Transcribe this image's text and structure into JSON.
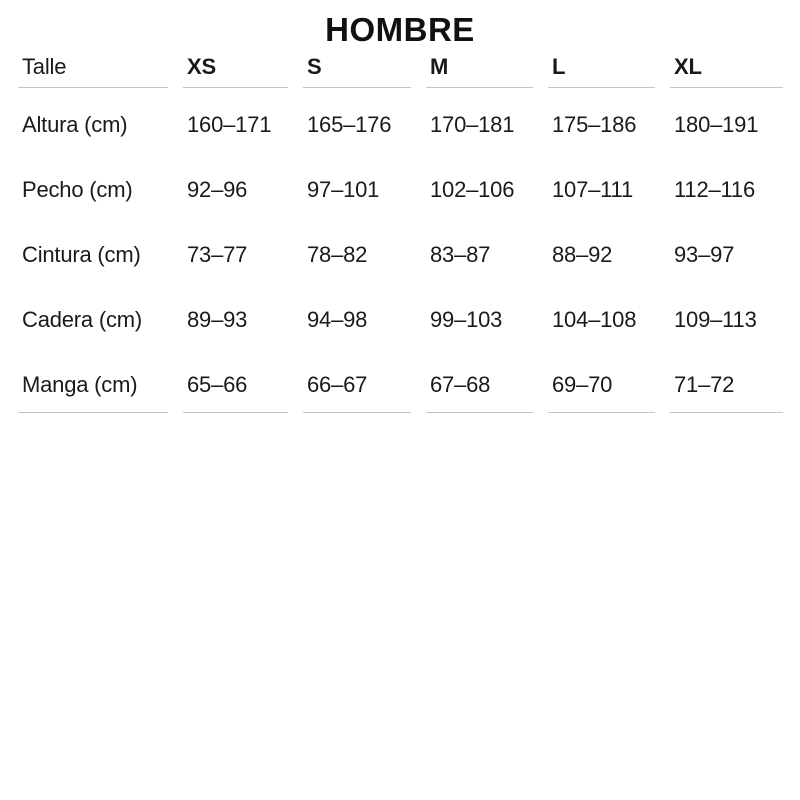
{
  "theme": {
    "background": "#ffffff",
    "text_color": "#1a1a1a",
    "title_color": "#111111",
    "rule_color": "#c5c5c5"
  },
  "chart_data": {
    "type": "table",
    "title": "HOMBRE",
    "columns": [
      "Talle",
      "XS",
      "S",
      "M",
      "L",
      "XL"
    ],
    "rows": [
      {
        "label": "Altura (cm)",
        "values": [
          "160–171",
          "165–176",
          "170–181",
          "175–186",
          "180–191"
        ]
      },
      {
        "label": "Pecho (cm)",
        "values": [
          "92–96",
          "97–101",
          "102–106",
          "107–111",
          "112–116"
        ]
      },
      {
        "label": "Cintura (cm)",
        "values": [
          "73–77",
          "78–82",
          "83–87",
          "88–92",
          "93–97"
        ]
      },
      {
        "label": "Cadera (cm)",
        "values": [
          "89–93",
          "94–98",
          "99–103",
          "104–108",
          "109–113"
        ]
      },
      {
        "label": "Manga (cm)",
        "values": [
          "65–66",
          "66–67",
          "67–68",
          "69–70",
          "71–72"
        ]
      }
    ],
    "layout": {
      "grid": "horizontal rules under header row and below last row only",
      "units": "cm"
    }
  }
}
